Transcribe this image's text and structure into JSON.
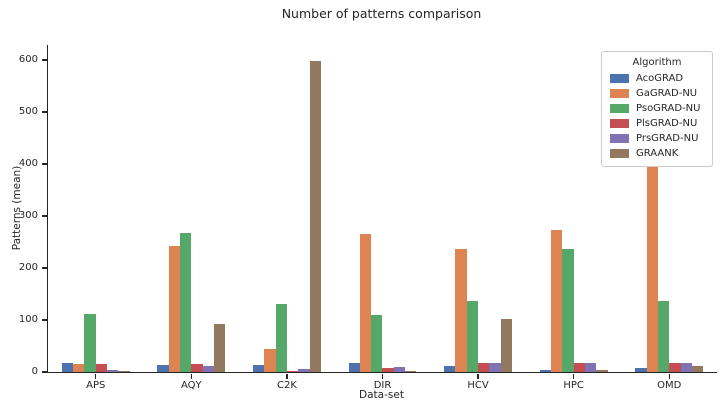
{
  "chart_data": {
    "type": "bar",
    "title": "Number of patterns comparison",
    "xlabel": "Data-set",
    "ylabel": "Patterns (mean)",
    "categories": [
      "APS",
      "AQY",
      "C2K",
      "DIR",
      "HCV",
      "HPC",
      "OMD"
    ],
    "series": [
      {
        "name": "AcoGRAD",
        "color": "#4C72B0",
        "values": [
          17,
          13,
          13,
          17,
          11,
          4,
          8
        ]
      },
      {
        "name": "GaGRAD-NU",
        "color": "#DD8452",
        "values": [
          15,
          243,
          44,
          266,
          237,
          274,
          396
        ]
      },
      {
        "name": "PsoGRAD-NU",
        "color": "#55A868",
        "values": [
          111,
          268,
          130,
          109,
          137,
          236,
          136
        ]
      },
      {
        "name": "PlsGRAD-NU",
        "color": "#C44E52",
        "values": [
          16,
          16,
          1,
          8,
          17,
          17,
          17
        ]
      },
      {
        "name": "PrsGRAD-NU",
        "color": "#8172B3",
        "values": [
          3,
          12,
          5,
          10,
          17,
          18,
          17
        ]
      },
      {
        "name": "GRAANK",
        "color": "#937860",
        "values": [
          1,
          92,
          598,
          2,
          102,
          4,
          12
        ]
      }
    ],
    "yticks": [
      0,
      100,
      200,
      300,
      400,
      500,
      600
    ],
    "ylim": [
      0,
      629
    ],
    "grid": false,
    "legend": {
      "title": "Algorithm",
      "position": "upper right"
    },
    "style": {
      "text_color": "#262626",
      "spine_color": "#262626",
      "background": "#ffffff",
      "legend_border": "#cccccc"
    }
  }
}
